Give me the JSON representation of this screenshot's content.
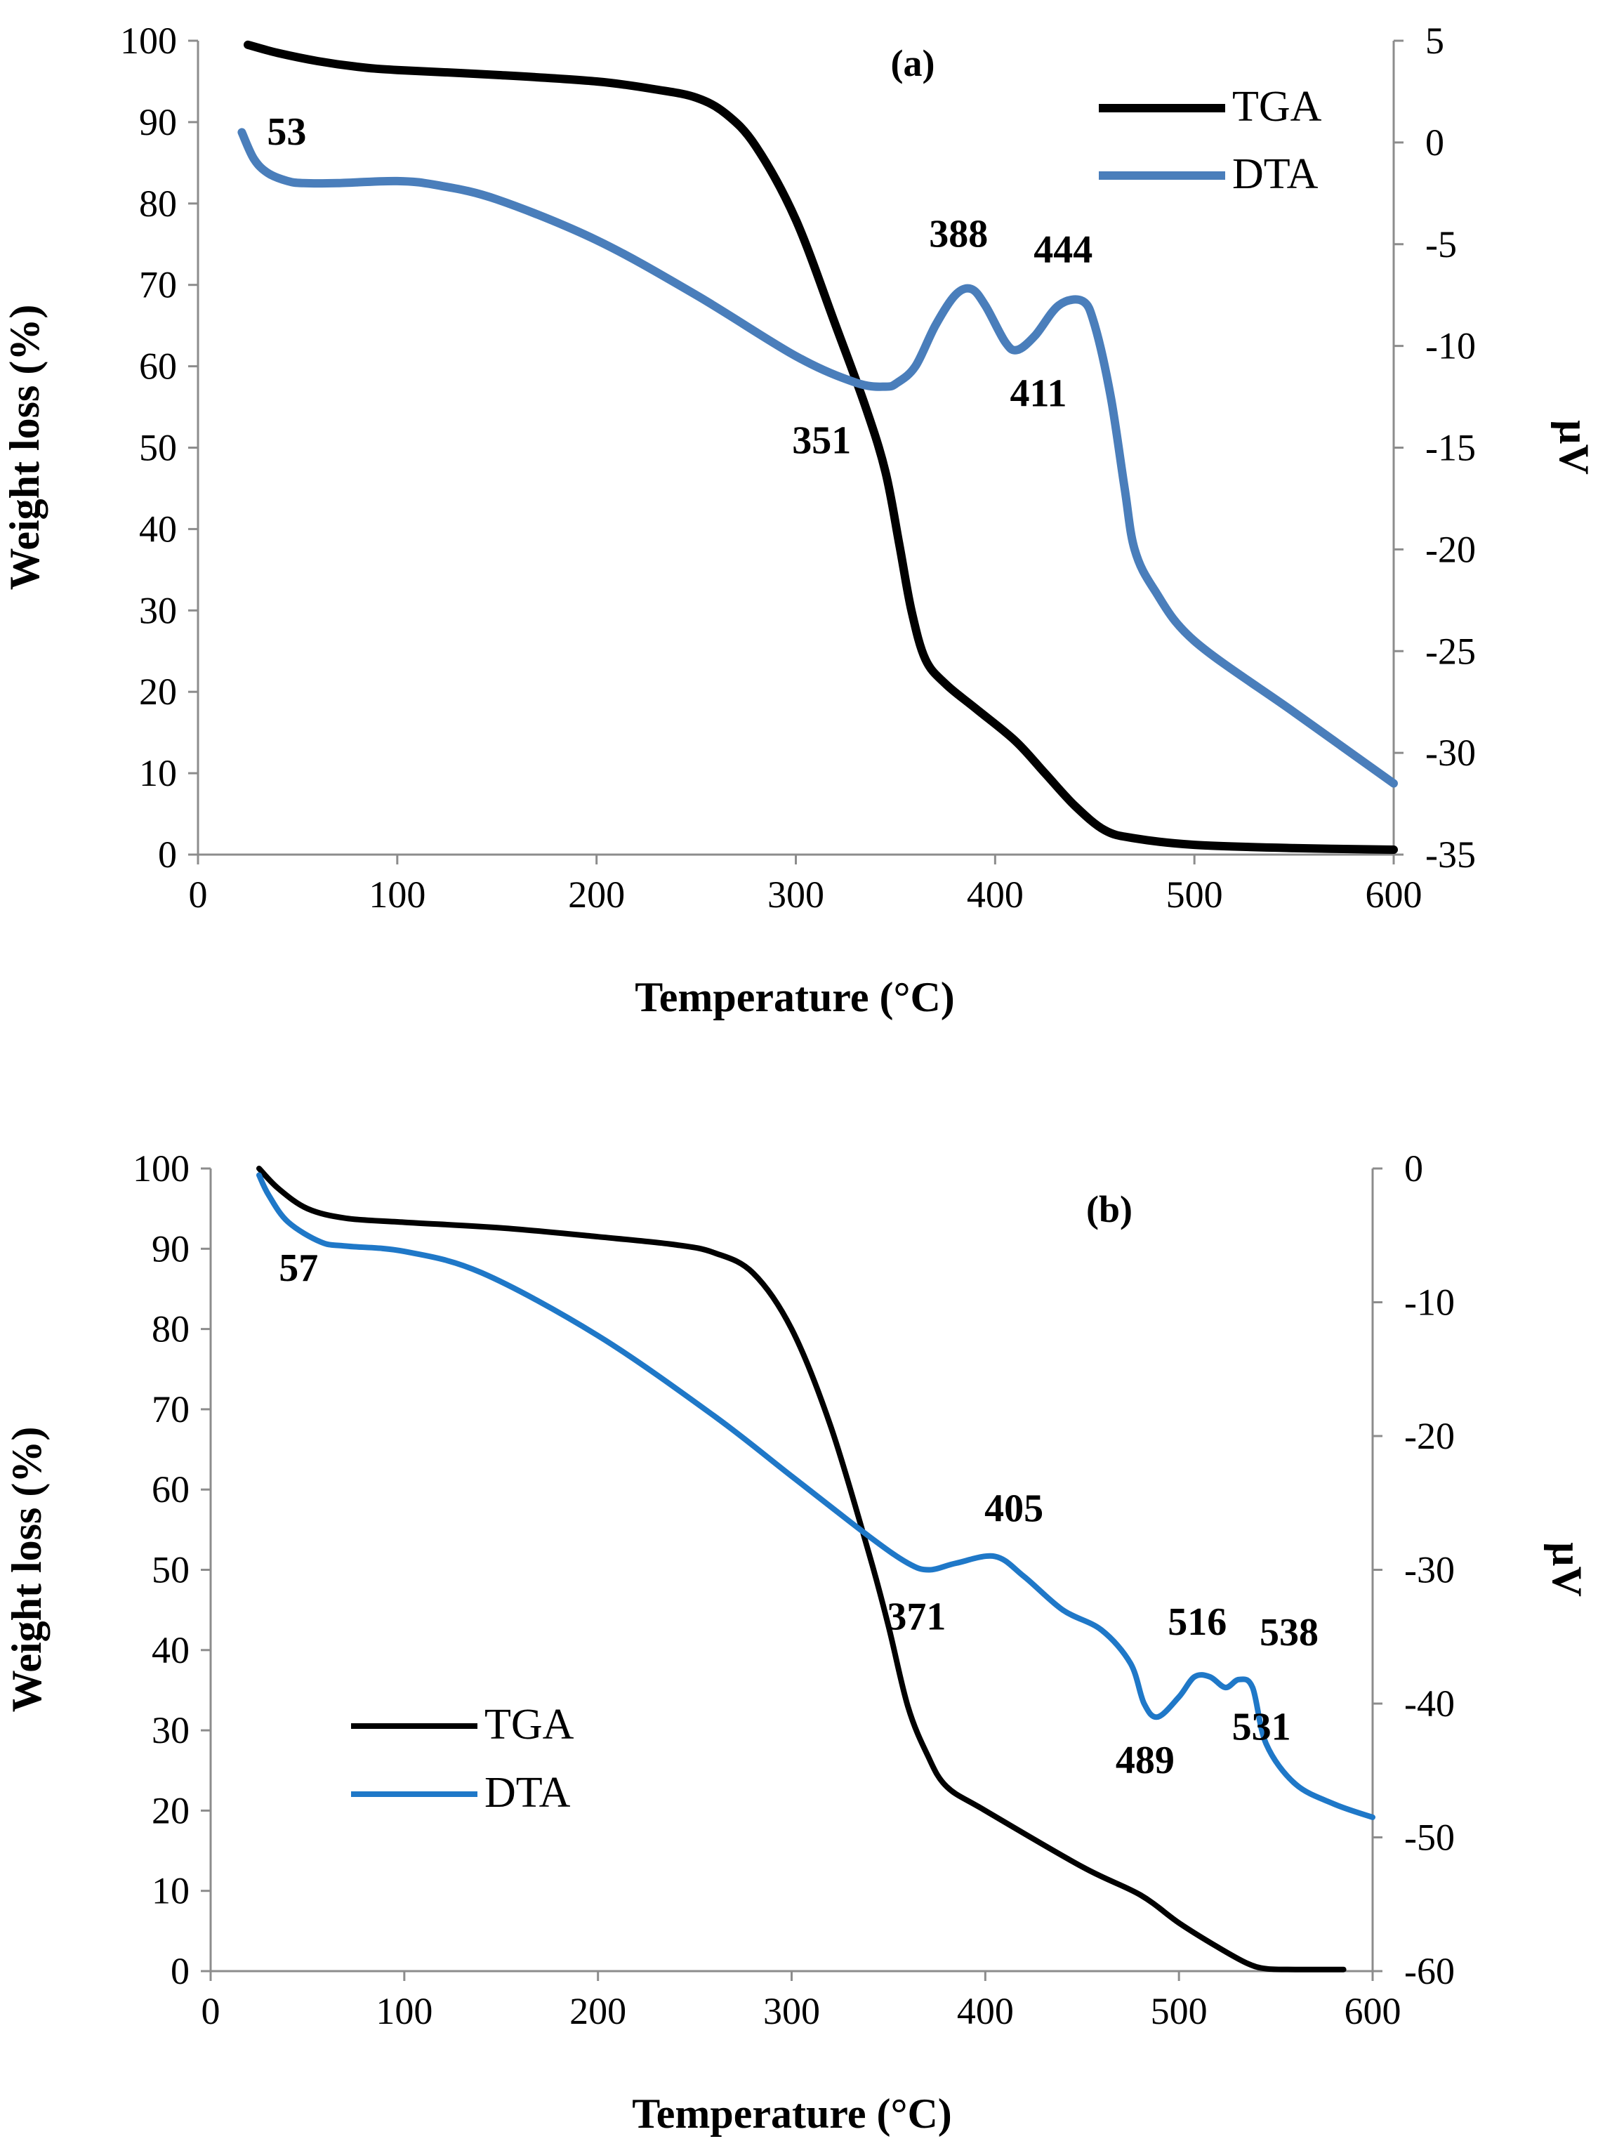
{
  "chart_data": [
    {
      "type": "line",
      "panel_label": "(a)",
      "xlabel": "Temperature (°C)",
      "ylabel": "Weight loss (%)",
      "y2label": "µV",
      "xlim": [
        0,
        600
      ],
      "ylim": [
        0,
        100
      ],
      "y2lim": [
        -35,
        5
      ],
      "xticks": [
        0,
        100,
        200,
        300,
        400,
        500,
        600
      ],
      "yticks": [
        0,
        10,
        20,
        30,
        40,
        50,
        60,
        70,
        80,
        90,
        100
      ],
      "y2ticks": [
        -35,
        -30,
        -25,
        -20,
        -15,
        -10,
        -5,
        0,
        5
      ],
      "legend_position": "top-right",
      "series": [
        {
          "name": "TGA",
          "axis": "left",
          "color": "#000000",
          "x": [
            25,
            40,
            60,
            80,
            100,
            150,
            200,
            230,
            250,
            265,
            280,
            300,
            320,
            335,
            345,
            352,
            358,
            365,
            375,
            390,
            410,
            425,
            440,
            455,
            470,
            500,
            550,
            600
          ],
          "y": [
            99.5,
            98.5,
            97.5,
            96.8,
            96.4,
            95.8,
            95,
            94,
            93,
            91,
            87,
            78,
            65,
            55,
            47,
            38,
            30,
            24,
            21,
            18,
            14,
            10,
            6,
            3,
            2,
            1.2,
            0.8,
            0.6
          ]
        },
        {
          "name": "DTA",
          "axis": "right",
          "color": "#4a7ebb",
          "x": [
            22,
            28,
            35,
            45,
            53,
            70,
            100,
            120,
            150,
            200,
            250,
            300,
            330,
            345,
            351,
            360,
            370,
            380,
            388,
            395,
            405,
            411,
            420,
            432,
            444,
            450,
            458,
            465,
            470,
            480,
            500,
            550,
            600
          ],
          "y": [
            0.5,
            -0.8,
            -1.5,
            -1.9,
            -2,
            -2,
            -1.9,
            -2.1,
            -2.8,
            -4.8,
            -7.5,
            -10.5,
            -11.8,
            -12,
            -11.8,
            -11,
            -9,
            -7.5,
            -7.2,
            -8,
            -9.8,
            -10.2,
            -9.5,
            -8,
            -7.8,
            -9,
            -12.5,
            -17,
            -20,
            -22,
            -24.5,
            -28,
            -31.5
          ]
        }
      ],
      "annotations": [
        {
          "text": "53",
          "x": 53,
          "y": -2
        },
        {
          "text": "351",
          "x": 351,
          "y": -12
        },
        {
          "text": "388",
          "x": 388,
          "y": -7.2
        },
        {
          "text": "411",
          "x": 411,
          "y": -10.2
        },
        {
          "text": "444",
          "x": 444,
          "y": -7.8
        }
      ]
    },
    {
      "type": "line",
      "panel_label": "(b)",
      "xlabel": "Temperature (°C)",
      "ylabel": "Weight loss (%)",
      "y2label": "µV",
      "xlim": [
        0,
        600
      ],
      "ylim": [
        0,
        100
      ],
      "y2lim": [
        -60,
        0
      ],
      "xticks": [
        0,
        100,
        200,
        300,
        400,
        500,
        600
      ],
      "yticks": [
        0,
        10,
        20,
        30,
        40,
        50,
        60,
        70,
        80,
        90,
        100
      ],
      "y2ticks": [
        -60,
        -50,
        -40,
        -30,
        -20,
        -10,
        0
      ],
      "legend_position": "bottom-left",
      "series": [
        {
          "name": "TGA",
          "axis": "left",
          "color": "#000000",
          "x": [
            25,
            35,
            50,
            70,
            100,
            150,
            200,
            240,
            260,
            280,
            300,
            320,
            340,
            350,
            360,
            370,
            380,
            400,
            450,
            480,
            500,
            520,
            535,
            545,
            560,
            585
          ],
          "y": [
            100,
            97.5,
            95,
            93.8,
            93.3,
            92.6,
            91.5,
            90.5,
            89.5,
            87,
            80,
            68,
            52,
            43,
            33,
            27,
            23,
            20,
            13,
            9.5,
            6,
            3,
            1,
            0.3,
            0.2,
            0.2
          ]
        },
        {
          "name": "DTA",
          "axis": "right",
          "color": "#1f78c8",
          "x": [
            25,
            30,
            40,
            57,
            70,
            100,
            140,
            200,
            260,
            300,
            340,
            360,
            371,
            385,
            405,
            420,
            440,
            460,
            475,
            482,
            489,
            500,
            508,
            516,
            524,
            531,
            538,
            545,
            560,
            580,
            600
          ],
          "y": [
            -0.5,
            -2,
            -4,
            -5.5,
            -5.8,
            -6.2,
            -7.8,
            -12.5,
            -18.5,
            -23,
            -27.5,
            -29.5,
            -30,
            -29.5,
            -29,
            -30.5,
            -33,
            -34.5,
            -37,
            -40,
            -41,
            -39.5,
            -38,
            -38,
            -38.8,
            -38.2,
            -38.8,
            -43,
            -46,
            -47.5,
            -48.5
          ]
        }
      ],
      "annotations": [
        {
          "text": "57",
          "x": 57,
          "y": -5.5
        },
        {
          "text": "371",
          "x": 371,
          "y": -30
        },
        {
          "text": "405",
          "x": 405,
          "y": -29
        },
        {
          "text": "489",
          "x": 489,
          "y": -41
        },
        {
          "text": "516",
          "x": 516,
          "y": -38
        },
        {
          "text": "531",
          "x": 531,
          "y": -38.5
        },
        {
          "text": "538",
          "x": 538,
          "y": -38.8
        }
      ]
    }
  ]
}
